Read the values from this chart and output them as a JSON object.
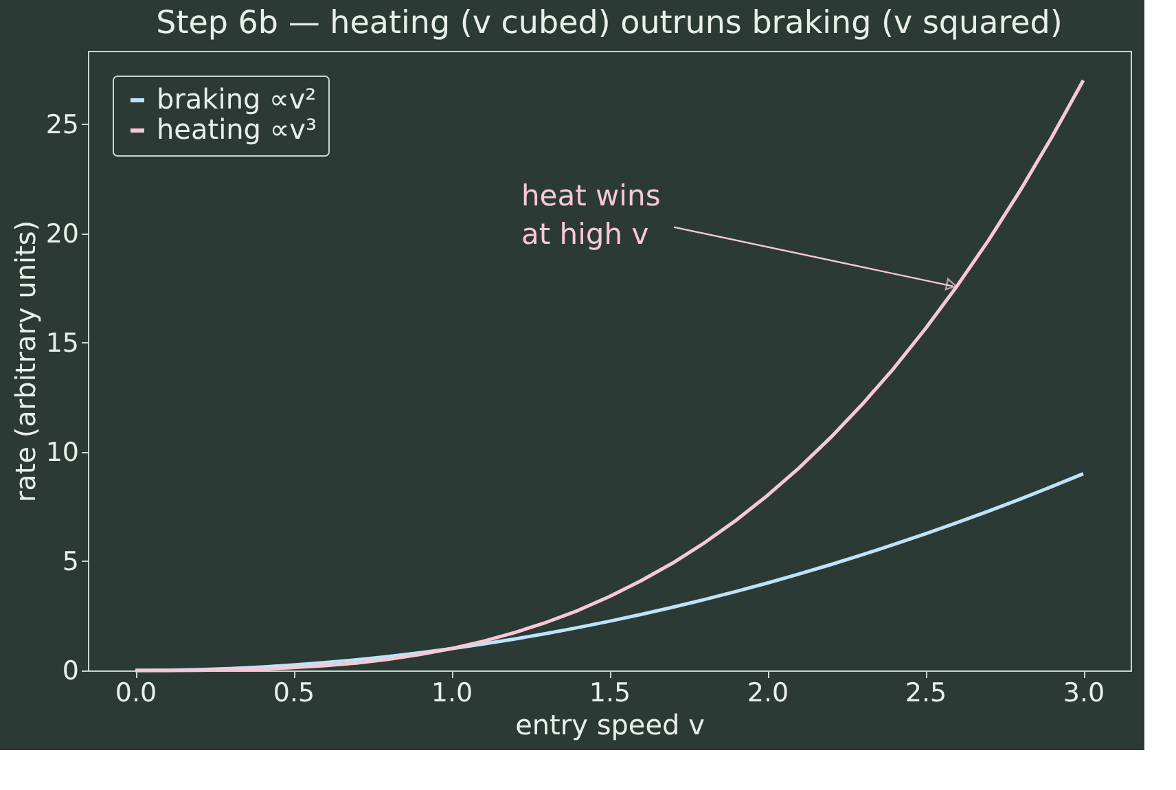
{
  "chart_data": {
    "type": "line",
    "title": "Step 6b — heating (v cubed) outruns braking (v squared)",
    "xlabel": "entry speed  v",
    "ylabel": "rate (arbitrary units)",
    "x": [
      0,
      0.1,
      0.2,
      0.3,
      0.4,
      0.5,
      0.6,
      0.7,
      0.8,
      0.9,
      1.0,
      1.1,
      1.2,
      1.3,
      1.4,
      1.5,
      1.6,
      1.7,
      1.8,
      1.9,
      2.0,
      2.1,
      2.2,
      2.3,
      2.4,
      2.5,
      2.6,
      2.7,
      2.8,
      2.9,
      3.0
    ],
    "series": [
      {
        "name": "braking ∝v²",
        "color": "#bde3fb",
        "values": [
          0,
          0.01,
          0.04,
          0.09,
          0.16,
          0.25,
          0.36,
          0.49,
          0.64,
          0.81,
          1.0,
          1.21,
          1.44,
          1.69,
          1.96,
          2.25,
          2.56,
          2.89,
          3.24,
          3.61,
          4.0,
          4.41,
          4.84,
          5.29,
          5.76,
          6.25,
          6.76,
          7.29,
          7.84,
          8.41,
          9.0
        ]
      },
      {
        "name": "heating ∝v³",
        "color": "#f8c8d6",
        "values": [
          0,
          0,
          0.01,
          0.03,
          0.06,
          0.13,
          0.22,
          0.34,
          0.51,
          0.73,
          1.0,
          1.33,
          1.73,
          2.2,
          2.74,
          3.38,
          4.1,
          4.91,
          5.83,
          6.86,
          8.0,
          9.26,
          10.65,
          12.17,
          13.82,
          15.63,
          17.58,
          19.68,
          21.95,
          24.39,
          27.0
        ]
      }
    ],
    "xlim": [
      -0.15,
      3.15
    ],
    "ylim": [
      0,
      28.35
    ],
    "xticks": [
      {
        "value": 0,
        "label": "0.0"
      },
      {
        "value": 0.5,
        "label": "0.5"
      },
      {
        "value": 1,
        "label": "1.0"
      },
      {
        "value": 1.5,
        "label": "1.5"
      },
      {
        "value": 2,
        "label": "2.0"
      },
      {
        "value": 2.5,
        "label": "2.5"
      },
      {
        "value": 3,
        "label": "3.0"
      }
    ],
    "yticks": [
      0,
      5,
      10,
      15,
      20,
      25
    ],
    "annotations": [
      {
        "text": "heat wins\nat high v",
        "x": 2.6,
        "y": 17.58
      }
    ],
    "legend": "top left",
    "grid": false,
    "marker": "none",
    "line_style": "solid"
  }
}
